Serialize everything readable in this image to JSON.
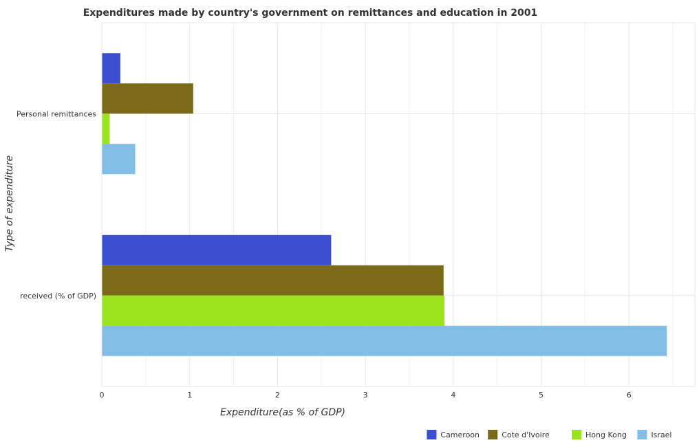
{
  "chart_data": {
    "type": "bar",
    "orientation": "horizontal",
    "title": "Expenditures made by country's government on remittances and education in 2001",
    "xlabel": "Expenditure(as % of GDP)",
    "ylabel": "Type of expenditure",
    "categories": [
      "Personal remittances",
      "received (% of GDP)"
    ],
    "xlim": [
      0,
      6.75
    ],
    "xticks": [
      0,
      1,
      2,
      3,
      4,
      5,
      6
    ],
    "grid": true,
    "legend_position": "bottom-right",
    "series": [
      {
        "name": "Cameroon",
        "color": "#3a4ecf",
        "values": [
          0.21,
          2.61
        ]
      },
      {
        "name": "Cote d'Ivoire",
        "color": "#7a6a1a",
        "values": [
          1.04,
          3.89
        ]
      },
      {
        "name": "Hong Kong",
        "color": "#9be31c",
        "values": [
          0.09,
          3.9
        ]
      },
      {
        "name": "Israel",
        "color": "#82bde6",
        "values": [
          0.38,
          6.43
        ]
      }
    ]
  }
}
